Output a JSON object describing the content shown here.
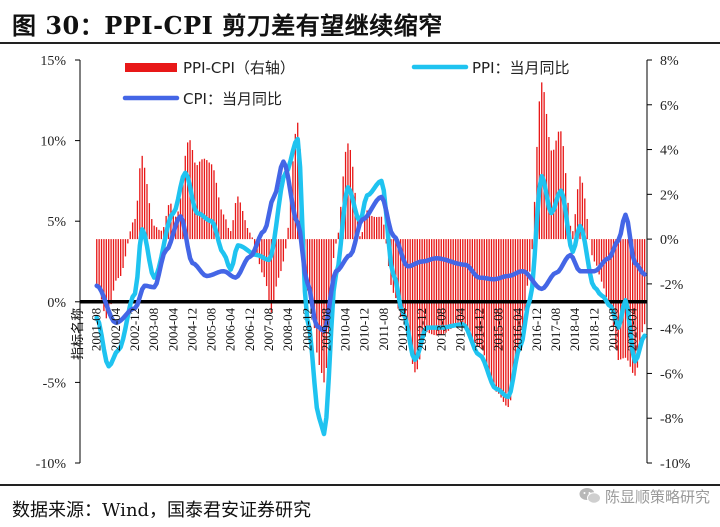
{
  "title": "图 30：PPI-CPI 剪刀差有望继续缩窄",
  "source": "数据来源：Wind，国泰君安证券研究",
  "watermark": "陈显顺策略研究",
  "colors": {
    "ppi": "#1fc3f0",
    "cpi": "#4466e6",
    "spread": "#e81818",
    "axis": "#000000"
  },
  "chart_data": {
    "type": "line",
    "left_axis": {
      "ylim": [
        -10,
        15
      ],
      "ticks": [
        "-10%",
        "-5%",
        "0%",
        "5%",
        "10%",
        "15%"
      ]
    },
    "right_axis": {
      "ylim": [
        -10,
        8
      ],
      "ticks": [
        "-10%",
        "-8%",
        "-6%",
        "-4%",
        "-2%",
        "0%",
        "2%",
        "4%",
        "6%",
        "8%"
      ]
    },
    "x_ticks": [
      "2001-08",
      "2002-04",
      "2002-12",
      "2003-08",
      "2004-04",
      "2004-12",
      "2005-08",
      "2006-04",
      "2006-12",
      "2007-08",
      "2008-04",
      "2008-12",
      "2009-08",
      "2010-04",
      "2010-12",
      "2011-08",
      "2012-04",
      "2012-12",
      "2013-08",
      "2014-04",
      "2014-12",
      "2015-08",
      "2016-04",
      "2016-12",
      "2017-08",
      "2018-04",
      "2018-12",
      "2019-08",
      "2020-04"
    ],
    "x_axis_placeholder": "指标名称",
    "legend": [
      "PPI-CPI（右轴）",
      "PPI：当月同比",
      "CPI：当月同比"
    ],
    "series": [
      {
        "name": "PPI：当月同比",
        "axis": "left",
        "anchors": [
          [
            "2001-08",
            -1.0
          ],
          [
            "2002-01",
            -4.0
          ],
          [
            "2002-05",
            -3.0
          ],
          [
            "2002-12",
            0.5
          ],
          [
            "2003-03",
            4.5
          ],
          [
            "2003-08",
            1.5
          ],
          [
            "2004-04",
            5.5
          ],
          [
            "2004-09",
            8.0
          ],
          [
            "2005-02",
            5.5
          ],
          [
            "2005-08",
            5.0
          ],
          [
            "2006-01",
            3.0
          ],
          [
            "2006-04",
            2.0
          ],
          [
            "2006-07",
            3.5
          ],
          [
            "2007-03",
            2.9
          ],
          [
            "2007-08",
            2.6
          ],
          [
            "2008-03",
            8.0
          ],
          [
            "2008-08",
            10.1
          ],
          [
            "2008-12",
            -1.1
          ],
          [
            "2009-05",
            -7.2
          ],
          [
            "2009-07",
            -8.2
          ],
          [
            "2009-12",
            1.7
          ],
          [
            "2010-05",
            7.1
          ],
          [
            "2010-10",
            5.0
          ],
          [
            "2011-01",
            6.6
          ],
          [
            "2011-07",
            7.5
          ],
          [
            "2011-12",
            1.7
          ],
          [
            "2012-04",
            -0.7
          ],
          [
            "2012-09",
            -3.6
          ],
          [
            "2013-02",
            -1.6
          ],
          [
            "2013-08",
            -1.6
          ],
          [
            "2014-05",
            -1.4
          ],
          [
            "2014-12",
            -3.3
          ],
          [
            "2015-07",
            -5.4
          ],
          [
            "2015-12",
            -5.9
          ],
          [
            "2016-05",
            -2.8
          ],
          [
            "2016-09",
            0.1
          ],
          [
            "2017-02",
            7.8
          ],
          [
            "2017-06",
            5.5
          ],
          [
            "2017-10",
            6.9
          ],
          [
            "2018-03",
            3.1
          ],
          [
            "2018-06",
            4.7
          ],
          [
            "2018-12",
            0.9
          ],
          [
            "2019-03",
            0.4
          ],
          [
            "2019-07",
            -0.3
          ],
          [
            "2019-10",
            -1.6
          ],
          [
            "2020-01",
            0.1
          ],
          [
            "2020-05",
            -3.7
          ],
          [
            "2020-09",
            -2.1
          ]
        ]
      },
      {
        "name": "CPI：当月同比",
        "axis": "left",
        "anchors": [
          [
            "2001-08",
            1.0
          ],
          [
            "2002-04",
            -1.3
          ],
          [
            "2002-12",
            -0.4
          ],
          [
            "2003-04",
            1.0
          ],
          [
            "2003-08",
            0.9
          ],
          [
            "2004-01",
            3.2
          ],
          [
            "2004-07",
            5.3
          ],
          [
            "2004-12",
            2.4
          ],
          [
            "2005-06",
            1.6
          ],
          [
            "2006-01",
            1.9
          ],
          [
            "2006-06",
            1.5
          ],
          [
            "2006-12",
            2.8
          ],
          [
            "2007-06",
            4.4
          ],
          [
            "2007-10",
            6.5
          ],
          [
            "2008-02",
            8.7
          ],
          [
            "2008-08",
            4.9
          ],
          [
            "2008-12",
            1.2
          ],
          [
            "2009-04",
            -1.5
          ],
          [
            "2009-07",
            -1.8
          ],
          [
            "2009-12",
            1.9
          ],
          [
            "2010-06",
            2.9
          ],
          [
            "2010-11",
            5.1
          ],
          [
            "2011-07",
            6.5
          ],
          [
            "2011-12",
            4.1
          ],
          [
            "2012-06",
            2.2
          ],
          [
            "2012-12",
            2.5
          ],
          [
            "2013-06",
            2.7
          ],
          [
            "2014-06",
            2.3
          ],
          [
            "2014-12",
            1.5
          ],
          [
            "2015-06",
            1.4
          ],
          [
            "2015-12",
            1.6
          ],
          [
            "2016-06",
            1.9
          ],
          [
            "2017-02",
            0.8
          ],
          [
            "2017-08",
            1.8
          ],
          [
            "2018-02",
            2.9
          ],
          [
            "2018-06",
            1.9
          ],
          [
            "2018-12",
            1.9
          ],
          [
            "2019-06",
            2.7
          ],
          [
            "2019-10",
            3.8
          ],
          [
            "2020-01",
            5.4
          ],
          [
            "2020-05",
            2.4
          ],
          [
            "2020-09",
            1.7
          ]
        ]
      }
    ],
    "spread_bars": {
      "name": "PPI-CPI（右轴）",
      "axis": "right",
      "formula": "PPI - CPI"
    }
  }
}
